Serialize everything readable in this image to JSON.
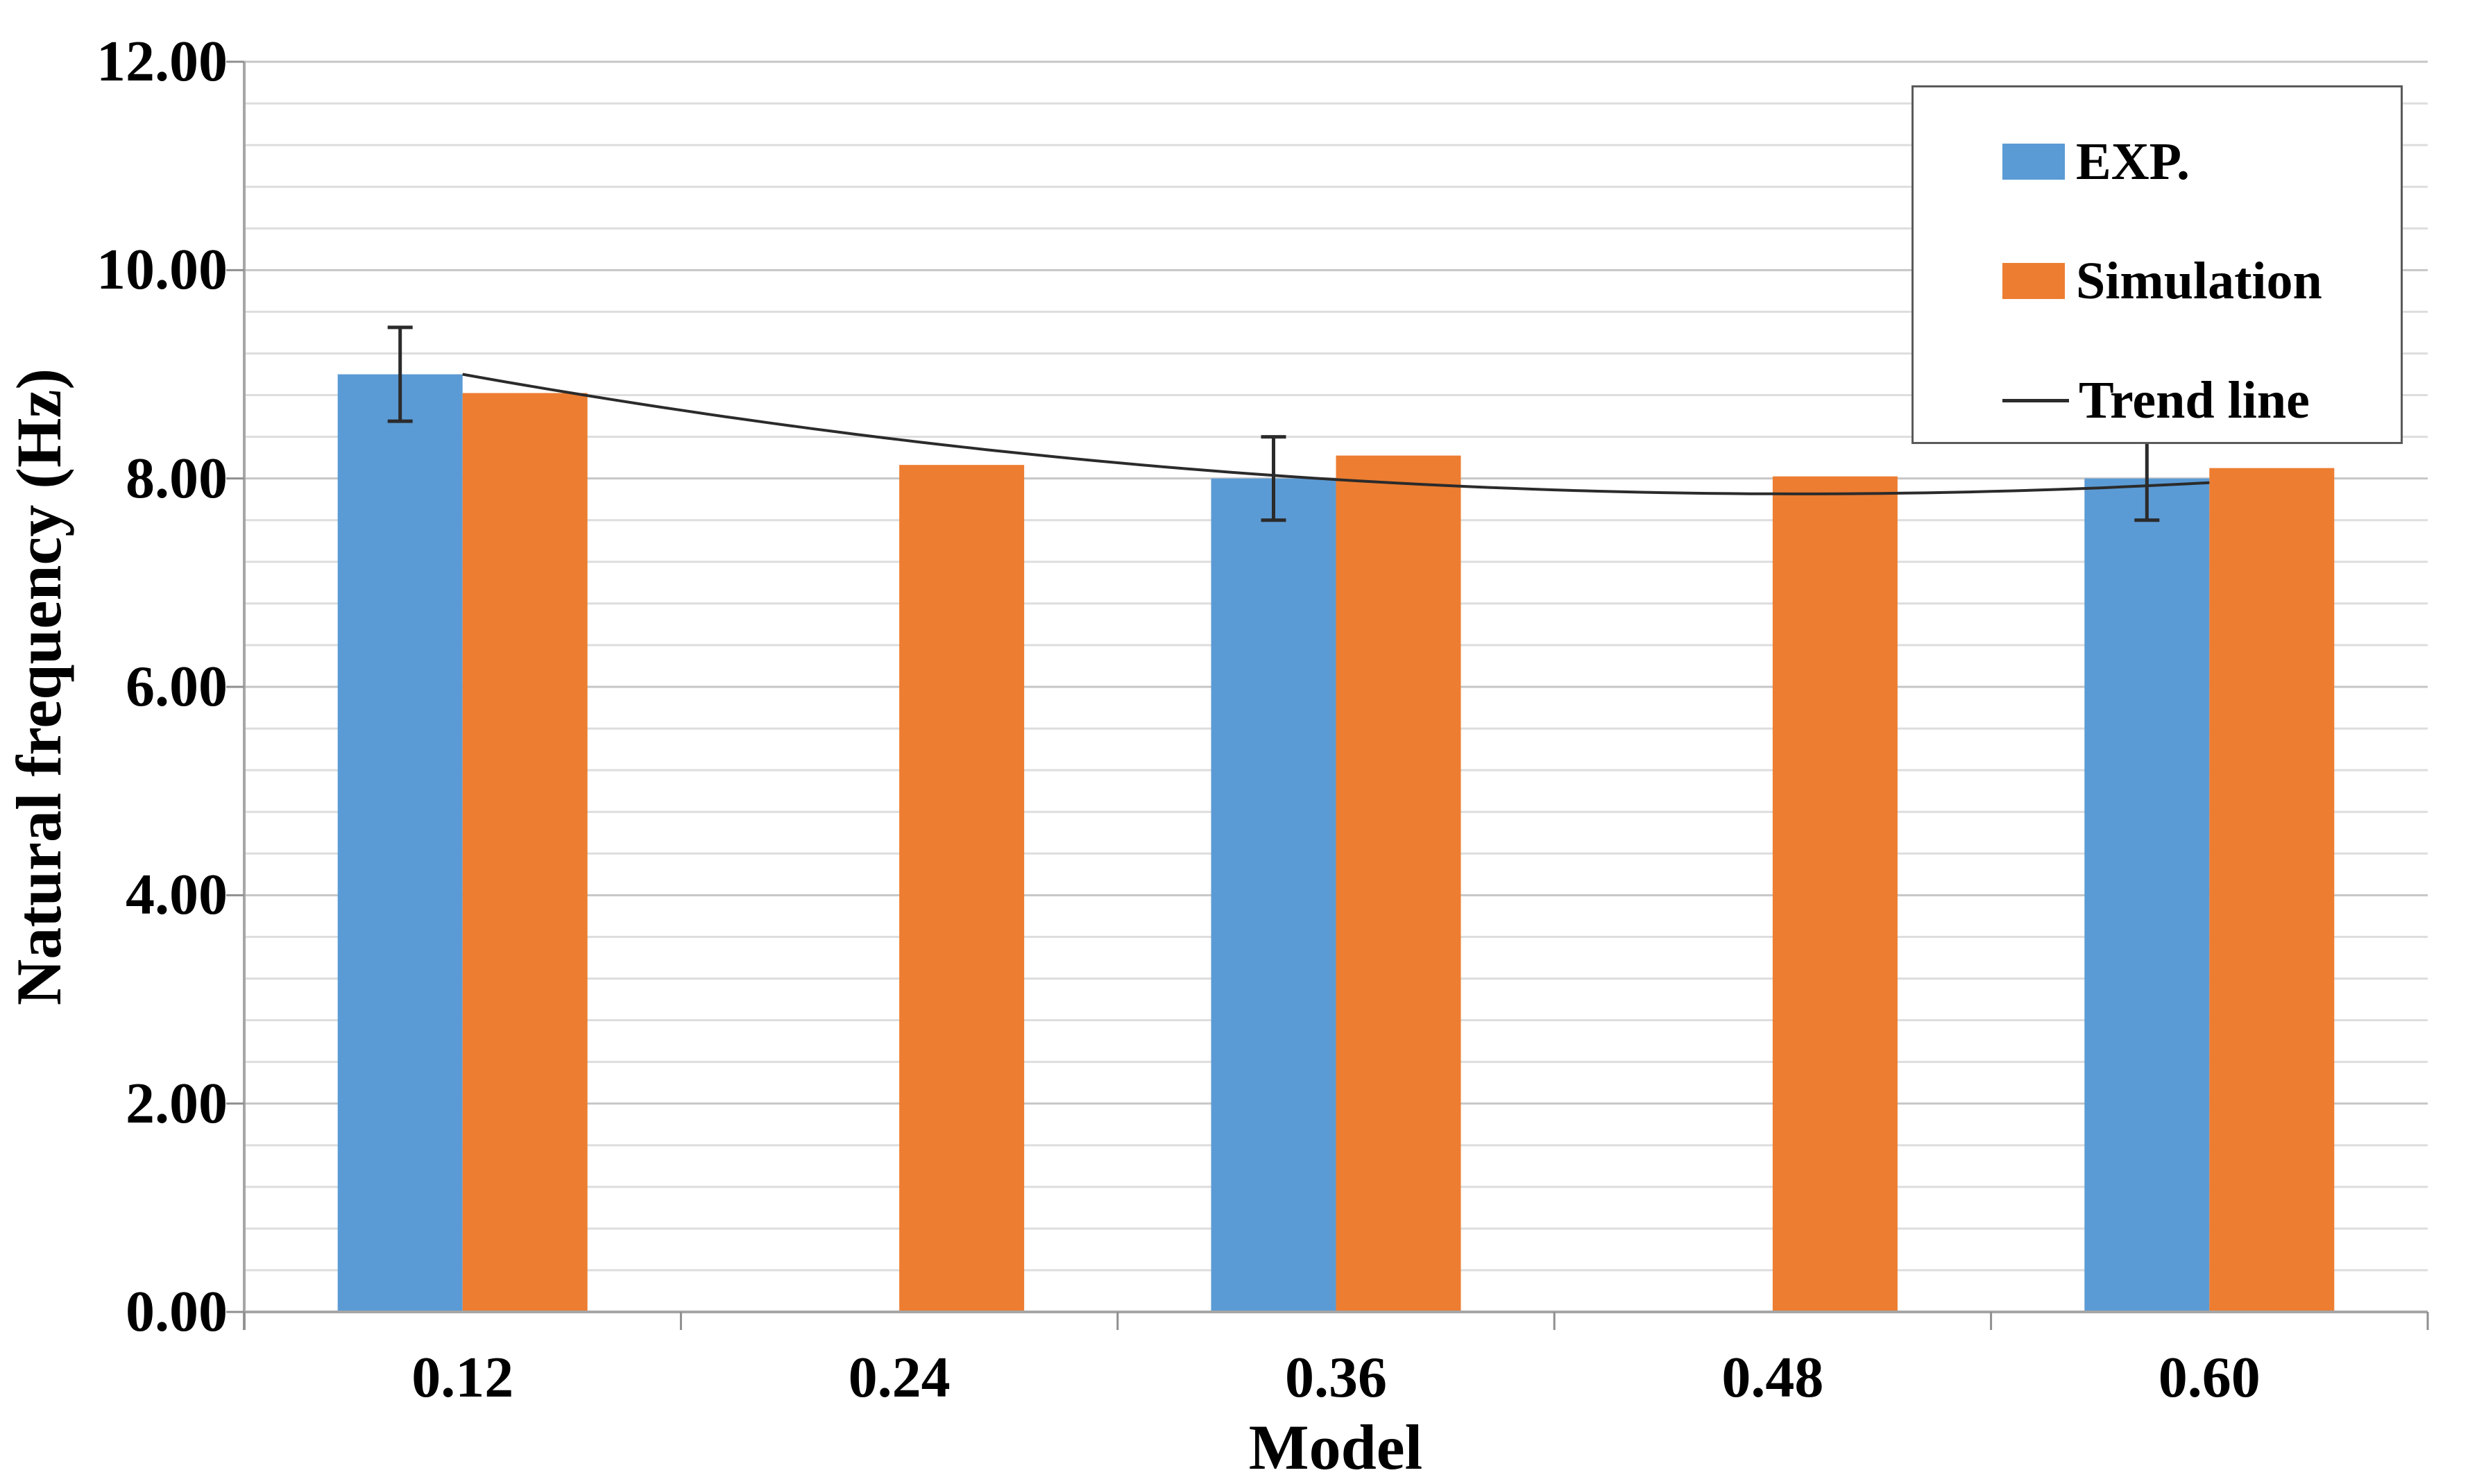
{
  "page": {
    "background": "#ffffff"
  },
  "chart_data": {
    "type": "bar",
    "title": "",
    "xlabel": "Model",
    "ylabel": "Natural frequency (Hz)",
    "categories": [
      "0.12",
      "0.24",
      "0.36",
      "0.48",
      "0.60"
    ],
    "series": [
      {
        "name": "EXP.",
        "color": "#5B9BD5",
        "values": [
          9.0,
          null,
          8.0,
          null,
          8.0
        ],
        "error_bars": [
          0.45,
          null,
          0.4,
          null,
          0.4
        ]
      },
      {
        "name": "Simulation",
        "color": "#ED7D31",
        "values": [
          8.82,
          8.13,
          8.22,
          8.02,
          8.1
        ],
        "error_bars": [
          null,
          null,
          null,
          null,
          null
        ]
      }
    ],
    "trend_line": {
      "name": "Trend line",
      "color": "#2b2b2b",
      "type": "polynomial-order-2",
      "coefficients": {
        "a": 0.1225,
        "b": -0.995,
        "c": 9.8725
      },
      "values_at_categories": [
        9.0,
        8.37,
        7.99,
        7.85,
        7.96
      ],
      "span": "from first category center to last category center"
    },
    "y_axis": {
      "min": 0,
      "max": 12,
      "major_unit": 2.0,
      "minor_unit": 0.4,
      "tick_labels": [
        "0.00",
        "2.00",
        "4.00",
        "6.00",
        "8.00",
        "10.00",
        "12.00"
      ],
      "grid": true
    },
    "x_axis": {
      "tick_labels": [
        "0.12",
        "0.24",
        "0.36",
        "0.48",
        "0.60"
      ]
    },
    "legend": {
      "position": "top-right",
      "entries": [
        {
          "label": "EXP.",
          "swatch": "rect",
          "color": "#5B9BD5"
        },
        {
          "label": "Simulation",
          "swatch": "rect",
          "color": "#ED7D31"
        },
        {
          "label": "Trend line",
          "swatch": "line",
          "color": "#2b2b2b"
        }
      ]
    },
    "colors": {
      "grid_minor": "#DDDDDD",
      "grid_major": "#C6C6C6",
      "axis": "#A6A6A6",
      "tick": "#8f8f8f",
      "error_bar": "#2b2b2b",
      "text": "#000000"
    }
  }
}
